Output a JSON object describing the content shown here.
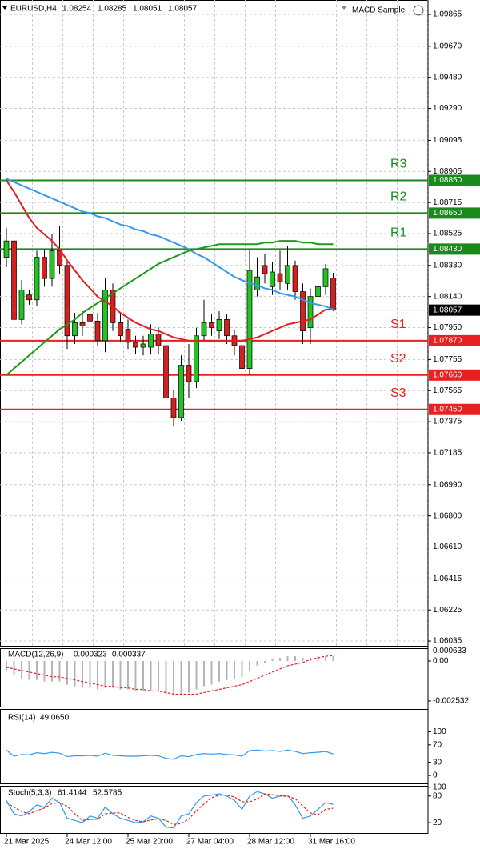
{
  "chart_data": [
    {
      "type": "candlestick",
      "title": "EURUSD,H4",
      "expert": "MACD Sample",
      "categories": [
        "21 Mar 2025",
        null,
        null,
        null,
        null,
        null,
        null,
        null,
        "24 Mar 12:00",
        null,
        null,
        null,
        null,
        null,
        null,
        null,
        "25 Mar 20:00",
        null,
        null,
        null,
        null,
        null,
        null,
        null,
        "27 Mar 04:00",
        null,
        null,
        null,
        null,
        null,
        null,
        null,
        "28 Mar 12:00",
        null,
        null,
        null,
        null,
        null,
        null,
        null,
        "31 Mar 16:00",
        null,
        null,
        null
      ],
      "open": [
        1.0838,
        1.0848,
        1.08,
        1.0815,
        1.0812,
        1.0838,
        1.0825,
        1.0842,
        1.0833,
        1.079,
        1.0798,
        1.0803,
        1.0799,
        1.0787,
        1.0818,
        1.0798,
        1.0794,
        1.0786,
        1.0783,
        1.0783,
        1.0791,
        1.0784,
        1.0752,
        1.074,
        1.0772,
        1.0762,
        1.079,
        1.0798,
        1.0793,
        1.08,
        1.079,
        1.0784,
        1.077,
        1.0818,
        1.0833,
        1.082,
        1.0828,
        1.0822,
        1.0833,
        1.0817,
        1.0795,
        1.0814,
        1.082,
        1.08254
      ],
      "high": [
        1.0856,
        1.0852,
        1.0824,
        1.0818,
        1.0842,
        1.0843,
        1.0852,
        1.0857,
        1.0836,
        1.0804,
        1.0805,
        1.0808,
        1.0804,
        1.0825,
        1.0822,
        1.0804,
        1.08,
        1.079,
        1.079,
        1.0797,
        1.0795,
        1.079,
        1.0757,
        1.0778,
        1.0785,
        1.0795,
        1.0812,
        1.0803,
        1.0805,
        1.0803,
        1.0794,
        1.0788,
        1.0843,
        1.0838,
        1.084,
        1.0835,
        1.0842,
        1.0845,
        1.0836,
        1.0822,
        1.0819,
        1.0824,
        1.0834,
        1.08285
      ],
      "low": [
        1.0832,
        1.0795,
        1.0797,
        1.0809,
        1.0808,
        1.082,
        1.082,
        1.0828,
        1.0782,
        1.0785,
        1.079,
        1.0795,
        1.0784,
        1.078,
        1.0793,
        1.0786,
        1.0782,
        1.0779,
        1.0778,
        1.0779,
        1.0779,
        1.0745,
        1.0735,
        1.0738,
        1.0752,
        1.0758,
        1.0786,
        1.079,
        1.0788,
        1.0785,
        1.0778,
        1.0764,
        1.0766,
        1.0814,
        1.0822,
        1.0815,
        1.0818,
        1.0818,
        1.0812,
        1.0785,
        1.0785,
        1.0808,
        1.0815,
        1.08051
      ],
      "close": [
        1.0848,
        1.08,
        1.0818,
        1.0812,
        1.0838,
        1.0825,
        1.0842,
        1.0833,
        1.079,
        1.0798,
        1.0796,
        1.0799,
        1.0787,
        1.0818,
        1.0798,
        1.079,
        1.0786,
        1.0783,
        1.0785,
        1.0791,
        1.0784,
        1.0752,
        1.074,
        1.0772,
        1.0762,
        1.079,
        1.0798,
        1.0795,
        1.08,
        1.079,
        1.0784,
        1.077,
        1.083,
        1.0826,
        1.0828,
        1.0829,
        1.0823,
        1.0833,
        1.0817,
        1.0793,
        1.0814,
        1.082,
        1.0831,
        1.08057
      ],
      "up_color": "#22c322",
      "down_color": "#d42020",
      "series": [
        {
          "color": "#e02020",
          "values": [
            1.0885,
            1.0878,
            1.087,
            1.0862,
            1.0856,
            1.0852,
            1.0848,
            1.0843,
            1.0836,
            1.083,
            1.0824,
            1.0819,
            1.0814,
            1.0811,
            1.0808,
            1.0804,
            1.0801,
            1.0798,
            1.0796,
            1.0794,
            1.0793,
            1.0791,
            1.0789,
            1.0788,
            1.0787,
            1.0787,
            1.0787,
            1.0787,
            1.0787,
            1.0787,
            1.0787,
            1.0787,
            1.0788,
            1.0789,
            1.0791,
            1.0793,
            1.0795,
            1.0797,
            1.0798,
            1.0799,
            1.08,
            1.0803,
            1.0806,
            1.0806
          ]
        },
        {
          "color": "#3399ee",
          "values": [
            1.0886,
            1.0884,
            1.0882,
            1.088,
            1.0878,
            1.0876,
            1.0874,
            1.0872,
            1.087,
            1.0868,
            1.0866,
            1.0865,
            1.0863,
            1.0862,
            1.086,
            1.0858,
            1.0857,
            1.0855,
            1.0854,
            1.0852,
            1.0851,
            1.0849,
            1.0847,
            1.0845,
            1.0843,
            1.084,
            1.0838,
            1.0835,
            1.0832,
            1.0829,
            1.0826,
            1.0824,
            1.0822,
            1.0821,
            1.0819,
            1.0818,
            1.0816,
            1.0815,
            1.0814,
            1.0812,
            1.081,
            1.0809,
            1.0808,
            1.0806
          ]
        },
        {
          "color": "#1a9a1a",
          "values": [
            1.0766,
            1.077,
            1.0774,
            1.0778,
            1.0782,
            1.0786,
            1.079,
            1.0794,
            1.0797,
            1.08,
            1.0804,
            1.0807,
            1.081,
            1.0813,
            1.0816,
            1.0819,
            1.0822,
            1.0825,
            1.0828,
            1.0831,
            1.0834,
            1.0836,
            1.0838,
            1.084,
            1.0842,
            1.0843,
            1.0844,
            1.0845,
            1.0846,
            1.0846,
            1.0846,
            1.0846,
            1.0846,
            1.0846,
            1.0847,
            1.0847,
            1.0848,
            1.0848,
            1.0848,
            1.0847,
            1.0847,
            1.0846,
            1.0846,
            1.0846
          ]
        }
      ],
      "levels": [
        {
          "name": "R3",
          "value": 1.0885,
          "label": "1.08850",
          "color": "#1a8a1a"
        },
        {
          "name": "R2",
          "value": 1.0865,
          "label": "1.08650",
          "color": "#1a8a1a"
        },
        {
          "name": "R1",
          "value": 1.0843,
          "label": "1.08430",
          "color": "#1a8a1a"
        },
        {
          "name": "S1",
          "value": 1.0787,
          "label": "1.07870",
          "color": "#e82020"
        },
        {
          "name": "S2",
          "value": 1.0766,
          "label": "1.07660",
          "color": "#e82020"
        },
        {
          "name": "S3",
          "value": 1.0745,
          "label": "1.07450",
          "color": "#e82020"
        }
      ],
      "ylim": [
        1.06001,
        1.09953
      ],
      "yticks": [
        1.09865,
        {
          "value": 1.0967,
          "label": "1.09670"
        },
        {
          "value": 1.0948,
          "label": "1.09480"
        },
        {
          "value": 1.0929,
          "label": "1.09290"
        },
        1.09095,
        1.08905,
        1.08715,
        1.08525,
        {
          "value": 1.0833,
          "label": "1.08330"
        },
        {
          "value": 1.0814,
          "label": "1.08140"
        },
        {
          "value": 1.0795,
          "label": "1.07950"
        },
        1.07755,
        1.07565,
        1.07375,
        1.07185,
        {
          "value": 1.0699,
          "label": "1.06990"
        },
        {
          "value": 1.068,
          "label": "1.06800"
        },
        {
          "value": 1.0661,
          "label": "1.06610"
        },
        1.06415,
        1.06225,
        1.06035
      ],
      "grid": true
    },
    {
      "type": "bar",
      "title": "MACD(12,26,9)",
      "color": "#b4b4b4",
      "values": [
        -0.0006,
        -0.0009,
        -0.0011,
        -0.0012,
        -0.0012,
        -0.0013,
        -0.0013,
        -0.0013,
        -0.0015,
        -0.0016,
        -0.0017,
        -0.0017,
        -0.0018,
        -0.0017,
        -0.0017,
        -0.0018,
        -0.0018,
        -0.0019,
        -0.0019,
        -0.0019,
        -0.0019,
        -0.0021,
        -0.0022,
        -0.0021,
        -0.002,
        -0.0018,
        -0.0016,
        -0.0015,
        -0.0013,
        -0.0012,
        -0.0011,
        -0.001,
        -0.0006,
        -0.0003,
        -0.0001,
        0.0001,
        0.0002,
        0.0003,
        0.0003,
        0.0002,
        0.0002,
        0.0003,
        0.0003,
        0.000323
      ],
      "series": [
        {
          "color": "#e02020",
          "dashed": true,
          "values": [
            -0.0004,
            -0.0005,
            -0.0006,
            -0.0007,
            -0.0008,
            -0.0009,
            -0.001,
            -0.001,
            -0.0011,
            -0.0012,
            -0.0013,
            -0.0014,
            -0.0015,
            -0.0016,
            -0.0016,
            -0.0017,
            -0.0017,
            -0.0018,
            -0.0018,
            -0.0019,
            -0.0019,
            -0.002,
            -0.0021,
            -0.0021,
            -0.0021,
            -0.0021,
            -0.002,
            -0.0019,
            -0.0018,
            -0.0017,
            -0.0016,
            -0.0015,
            -0.0013,
            -0.0011,
            -0.0009,
            -0.0007,
            -0.0005,
            -0.0003,
            -0.0002,
            -0.0001,
            0.0001,
            0.0002,
            0.0003,
            0.000337
          ]
        }
      ],
      "ylim": [
        -0.00294,
        0.00081
      ],
      "yticks": [
        0.000633,
        {
          "value": 0,
          "label": "0.00"
        },
        -0.002532
      ]
    },
    {
      "type": "line",
      "title": "RSI(14)",
      "series": [
        {
          "color": "#3399ee",
          "values": [
            58,
            44,
            48,
            47,
            52,
            50,
            53,
            51,
            43,
            45,
            45,
            46,
            44,
            51,
            46,
            45,
            44,
            44,
            45,
            46,
            45,
            39,
            37,
            45,
            43,
            48,
            50,
            49,
            50,
            48,
            47,
            44,
            57,
            58,
            56,
            57,
            55,
            58,
            55,
            50,
            52,
            53,
            55,
            49.065
          ],
          "value_labels": [
            null,
            null,
            null,
            null,
            null,
            null,
            null,
            null,
            null,
            null,
            null,
            null,
            null,
            null,
            null,
            null,
            null,
            null,
            null,
            null,
            null,
            null,
            null,
            null,
            null,
            null,
            null,
            null,
            null,
            null,
            null,
            null,
            null,
            null,
            null,
            null,
            null,
            null,
            null,
            null,
            null,
            null,
            null,
            "49.0650"
          ]
        }
      ],
      "ylim": [
        -20,
        152
      ],
      "yticks": [
        100,
        70,
        30,
        0
      ]
    },
    {
      "type": "line",
      "title": "Stoch(5,3,3)",
      "series": [
        {
          "color": "#3399ee",
          "values": [
            70,
            40,
            35,
            45,
            60,
            55,
            75,
            65,
            30,
            25,
            20,
            35,
            30,
            55,
            40,
            30,
            25,
            20,
            22,
            35,
            30,
            10,
            8,
            35,
            40,
            65,
            80,
            82,
            85,
            80,
            70,
            50,
            80,
            90,
            85,
            75,
            80,
            82,
            60,
            30,
            35,
            50,
            65,
            61.4144
          ]
        },
        {
          "color": "#e02020",
          "dashed": true,
          "values": [
            65,
            55,
            45,
            40,
            47,
            53,
            63,
            65,
            57,
            40,
            25,
            27,
            28,
            40,
            42,
            42,
            32,
            25,
            22,
            26,
            29,
            25,
            16,
            18,
            28,
            47,
            62,
            76,
            82,
            82,
            78,
            67,
            67,
            73,
            85,
            83,
            80,
            79,
            74,
            57,
            42,
            38,
            50,
            52.5785
          ]
        }
      ],
      "ylim": [
        -5,
        103
      ],
      "yticks": [
        100,
        80,
        20
      ]
    }
  ]
}
